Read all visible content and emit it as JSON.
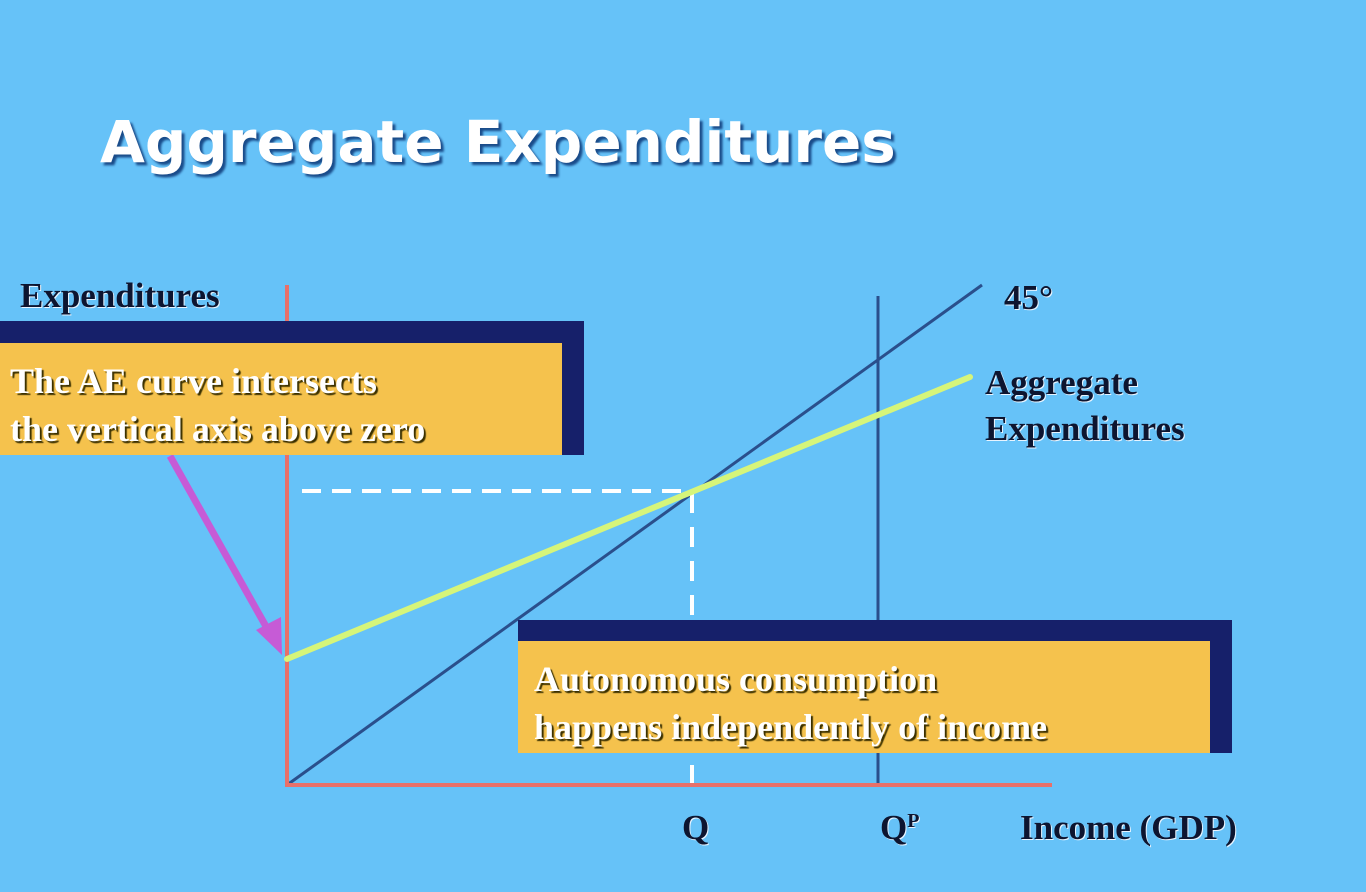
{
  "title": "Aggregate Expenditures",
  "labels": {
    "y_axis": "Expenditures",
    "degree_line": "45°",
    "ae_line": [
      "Aggregate",
      "Expenditures"
    ],
    "q": "Q",
    "qp_base": "Q",
    "qp_sup": "P",
    "x_axis": "Income (GDP)"
  },
  "callouts": {
    "ae_intercept": [
      "The AE curve intersects",
      "the vertical axis above zero"
    ],
    "autonomous": [
      "Autonomous consumption",
      "happens independently of income"
    ]
  },
  "colors": {
    "background": "#66c2f8",
    "axes": "#e8706a",
    "degree_line": "#2a4f8c",
    "ae_line": "#d6f57a",
    "potential_line": "#2a4f8c",
    "dashed": "#ffffff",
    "arrow": "#c65bd6",
    "callout_fill": "#f5c24d",
    "callout_shadow": "#16206a"
  }
}
